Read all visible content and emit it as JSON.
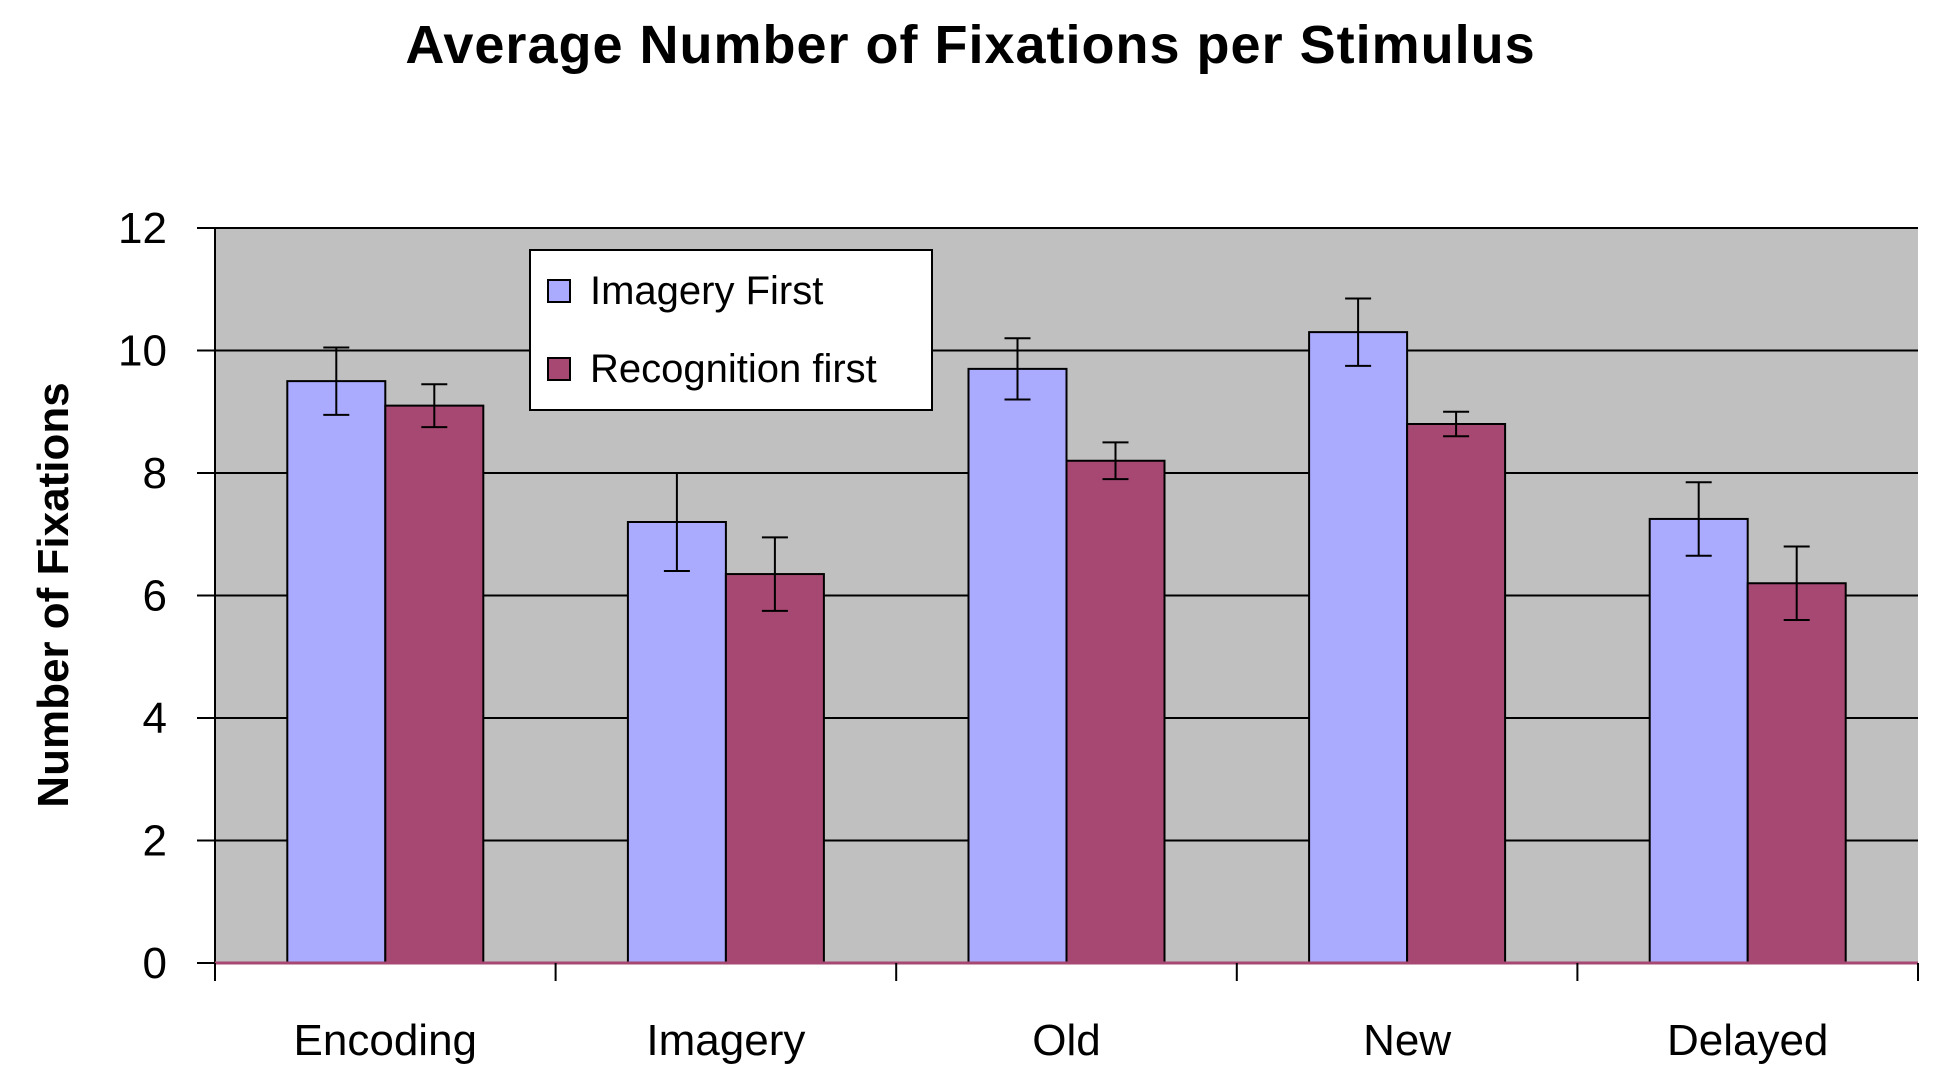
{
  "chart_data": {
    "type": "bar",
    "title": "Average Number of Fixations per Stimulus",
    "xlabel": "",
    "ylabel": "Number of Fixations",
    "categories": [
      "Encoding",
      "Imagery",
      "Old",
      "New",
      "Delayed"
    ],
    "ylim": [
      0,
      12
    ],
    "yticks": [
      0,
      2,
      4,
      6,
      8,
      10,
      12
    ],
    "grid": true,
    "legend_position": "top-left",
    "series": [
      {
        "name": "Imagery First",
        "color": "#aaaaff",
        "values": [
          9.5,
          7.2,
          9.7,
          10.3,
          7.25
        ],
        "error": [
          0.55,
          0.8,
          0.5,
          0.55,
          0.6
        ]
      },
      {
        "name": "Recognition first",
        "color": "#a64872",
        "values": [
          9.1,
          6.35,
          8.2,
          8.8,
          6.2
        ],
        "error": [
          0.35,
          0.6,
          0.3,
          0.2,
          0.6
        ]
      }
    ],
    "colors": {
      "plot_background": "#c0c0c0",
      "gridline": "#000000",
      "baseline": "#a64872"
    }
  }
}
